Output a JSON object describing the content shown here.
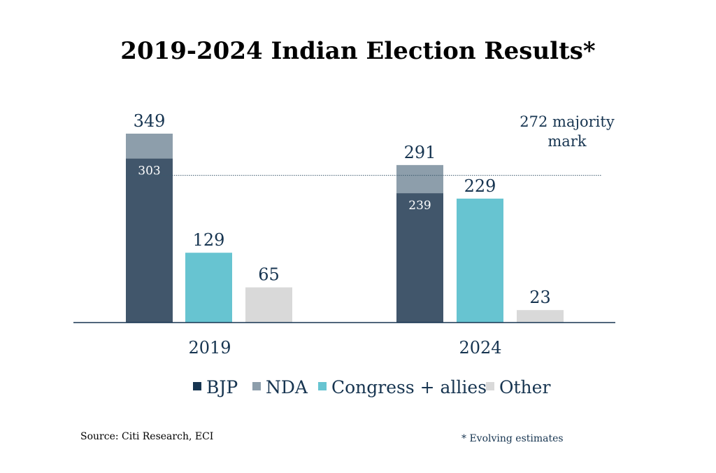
{
  "chart_data": {
    "type": "bar",
    "stacked_first_series": true,
    "title": "2019-2024 Indian Election Results*",
    "categories": [
      "2019",
      "2024"
    ],
    "groups": [
      {
        "year": "2019",
        "bars": [
          {
            "party": "NDA",
            "total": 349,
            "bjp": 303
          },
          {
            "party": "Congress + allies",
            "total": 129
          },
          {
            "party": "Other",
            "total": 65
          }
        ]
      },
      {
        "year": "2024",
        "bars": [
          {
            "party": "NDA",
            "total": 291,
            "bjp": 239
          },
          {
            "party": "Congress + allies",
            "total": 229
          },
          {
            "party": "Other",
            "total": 23
          }
        ]
      }
    ],
    "majority": {
      "value": 272,
      "label_line1": "272 majority",
      "label_line2": "mark"
    },
    "legend": [
      {
        "name": "BJP",
        "color": "#163450"
      },
      {
        "name": "NDA",
        "color": "#8d9eab"
      },
      {
        "name": "Congress + allies",
        "color": "#67c4d1"
      },
      {
        "name": "Other",
        "color": "#d9d9d9"
      }
    ],
    "bar_colors": {
      "bjp": "#41566b",
      "nda": "#8d9eab",
      "congress": "#67c4d1",
      "other": "#d9d9d9"
    },
    "legend_placement": "bottom",
    "grid": false,
    "ylim": [
      0,
      349
    ]
  },
  "footer": {
    "source": "Source: Citi Research, ECI",
    "note": "* Evolving estimates"
  },
  "text_color": "#163450"
}
